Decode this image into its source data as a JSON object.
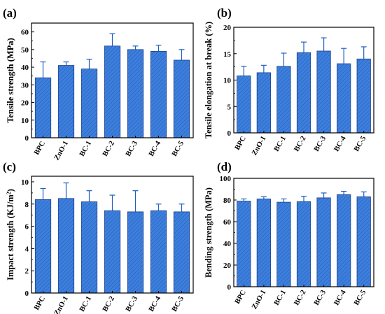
{
  "chart_data": [
    {
      "type": "bar",
      "panel": "(a)",
      "ylabel": "Tensile strength (MPa)",
      "categories": [
        "BPC",
        "ZnO-1",
        "BC-1",
        "BC-2",
        "BC-3",
        "BC-4",
        "BC-5"
      ],
      "values": [
        34,
        41,
        39,
        52,
        50,
        49,
        44
      ],
      "errors": [
        9,
        2,
        5.5,
        7,
        2,
        3.5,
        6
      ],
      "ylim": [
        0,
        65
      ],
      "yticks": [
        0,
        10,
        20,
        30,
        40,
        50,
        60
      ],
      "grid": false,
      "bar_color": "#3f7fdc"
    },
    {
      "type": "bar",
      "panel": "(b)",
      "ylabel": "Tensile elongation at break (%)",
      "categories": [
        "BPC",
        "ZnO-1",
        "BC-1",
        "BC-2",
        "BC-3",
        "BC-4",
        "BC-5"
      ],
      "values": [
        10.8,
        11.4,
        12.6,
        15.2,
        15.5,
        13.1,
        14.0
      ],
      "errors": [
        1.8,
        1.4,
        2.5,
        2.0,
        2.5,
        2.9,
        2.3
      ],
      "ylim": [
        0,
        20
      ],
      "yticks": [
        0,
        5,
        10,
        15,
        20
      ],
      "grid": false,
      "bar_color": "#3f7fdc"
    },
    {
      "type": "bar",
      "panel": "(c)",
      "ylabel": "Impact strength (KJ/m",
      "ylabel_sup": "2",
      "ylabel_end": ")",
      "categories": [
        "BPC",
        "ZnO-1",
        "BC-1",
        "BC-2",
        "BC-3",
        "BC-4",
        "BC-5"
      ],
      "values": [
        8.4,
        8.5,
        8.2,
        7.4,
        7.3,
        7.4,
        7.3
      ],
      "errors": [
        1.0,
        1.4,
        1.0,
        1.4,
        1.9,
        0.6,
        0.7
      ],
      "ylim": [
        0,
        10.5
      ],
      "yticks": [
        0,
        2,
        4,
        6,
        8,
        10
      ],
      "grid": false,
      "bar_color": "#3f7fdc"
    },
    {
      "type": "bar",
      "panel": "(d)",
      "ylabel": "Bending strength (MPa)",
      "categories": [
        "BPC",
        "ZnO-1",
        "BC-1",
        "BC-2",
        "BC-3",
        "BC-4",
        "BC-5"
      ],
      "values": [
        79,
        81,
        78,
        78.5,
        82,
        85,
        83
      ],
      "errors": [
        2,
        2,
        3,
        5,
        4.5,
        3,
        4.5
      ],
      "ylim": [
        0,
        100
      ],
      "yticks": [
        0,
        20,
        40,
        60,
        80,
        100
      ],
      "grid": false,
      "bar_color": "#3f7fdc"
    }
  ]
}
